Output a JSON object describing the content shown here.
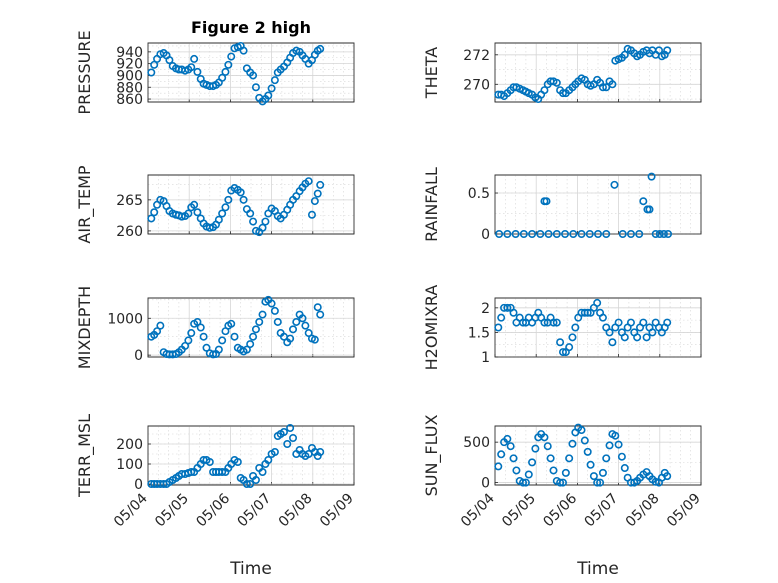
{
  "figure": {
    "title": "Figure 2 high",
    "marker_color": "#0072bd",
    "grid": "on",
    "minor_grid": "on"
  },
  "chart_data": [
    {
      "type": "scatter",
      "title": "Figure 2 high",
      "xlabel": "",
      "ylabel": "PRESSURE",
      "ylim": [
        855,
        955
      ],
      "yticks": [
        860,
        880,
        900,
        920,
        940
      ],
      "xlim": [
        "05/04",
        "05/09"
      ],
      "xticks": [
        "05/04",
        "05/05",
        "05/06",
        "05/07",
        "05/08",
        "05/09"
      ],
      "shape": "wave",
      "x": [
        0.08,
        0.15,
        0.22,
        0.3,
        0.38,
        0.45,
        0.52,
        0.6,
        0.68,
        0.75,
        0.82,
        0.9,
        0.98,
        1.05,
        1.12,
        1.2,
        1.28,
        1.35,
        1.42,
        1.5,
        1.58,
        1.65,
        1.72,
        1.8,
        1.88,
        1.95,
        2.02,
        2.1,
        2.18,
        2.25,
        2.32,
        2.4,
        2.48,
        2.55,
        2.62,
        2.7,
        2.78,
        2.85,
        2.92,
        3.0,
        3.08,
        3.15,
        3.22,
        3.3,
        3.38,
        3.45,
        3.52,
        3.6,
        3.68,
        3.75,
        3.82,
        3.9,
        3.98,
        4.05,
        4.12,
        4.18
      ],
      "y": [
        905,
        918,
        928,
        936,
        938,
        934,
        926,
        916,
        912,
        910,
        910,
        908,
        910,
        914,
        928,
        906,
        894,
        886,
        884,
        882,
        882,
        884,
        888,
        896,
        906,
        918,
        932,
        946,
        948,
        950,
        942,
        912,
        905,
        900,
        880,
        862,
        856,
        860,
        866,
        878,
        892,
        905,
        910,
        915,
        922,
        930,
        938,
        942,
        940,
        934,
        928,
        920,
        926,
        935,
        942,
        945
      ]
    },
    {
      "type": "scatter",
      "title": "",
      "xlabel": "",
      "ylabel": "THETA",
      "ylim": [
        268.8,
        272.8
      ],
      "yticks": [
        270,
        272
      ],
      "xlim": [
        "05/04",
        "05/09"
      ],
      "xticks": [
        "05/04",
        "05/05",
        "05/06",
        "05/07",
        "05/08",
        "05/09"
      ],
      "shape": "linear",
      "x": [
        0.08,
        0.15,
        0.22,
        0.3,
        0.38,
        0.45,
        0.52,
        0.6,
        0.68,
        0.75,
        0.82,
        0.9,
        0.98,
        1.05,
        1.12,
        1.2,
        1.28,
        1.35,
        1.42,
        1.5,
        1.58,
        1.65,
        1.72,
        1.8,
        1.88,
        1.95,
        2.02,
        2.1,
        2.18,
        2.25,
        2.32,
        2.4,
        2.48,
        2.55,
        2.62,
        2.7,
        2.78,
        2.85,
        2.92,
        3.0,
        3.08,
        3.15,
        3.22,
        3.3,
        3.38,
        3.45,
        3.52,
        3.6,
        3.68,
        3.75,
        3.82,
        3.9,
        3.98,
        4.05,
        4.12,
        4.18
      ],
      "y": [
        269.3,
        269.3,
        269.2,
        269.4,
        269.6,
        269.8,
        269.8,
        269.7,
        269.6,
        269.5,
        269.4,
        269.3,
        269.1,
        269.0,
        269.3,
        269.6,
        270.0,
        270.2,
        270.2,
        270.1,
        269.6,
        269.4,
        269.4,
        269.6,
        269.8,
        270.0,
        270.2,
        270.4,
        270.3,
        270.0,
        269.9,
        270.0,
        270.3,
        270.1,
        269.8,
        269.8,
        270.2,
        270.0,
        271.6,
        271.7,
        271.8,
        272.0,
        272.4,
        272.3,
        272.1,
        271.9,
        272.0,
        272.2,
        272.3,
        272.1,
        272.3,
        272.0,
        272.3,
        271.9,
        272.0,
        272.3
      ]
    },
    {
      "type": "scatter",
      "title": "",
      "xlabel": "",
      "ylabel": "AIR_TEMP",
      "ylim": [
        259.5,
        269.0
      ],
      "yticks": [
        260,
        265
      ],
      "xlim": [
        "05/04",
        "05/09"
      ],
      "xticks": [
        "05/04",
        "05/05",
        "05/06",
        "05/07",
        "05/08",
        "05/09"
      ],
      "shape": "wave",
      "x": [
        0.08,
        0.15,
        0.22,
        0.3,
        0.38,
        0.45,
        0.52,
        0.6,
        0.68,
        0.75,
        0.82,
        0.9,
        0.98,
        1.05,
        1.12,
        1.2,
        1.28,
        1.35,
        1.42,
        1.5,
        1.58,
        1.65,
        1.72,
        1.8,
        1.88,
        1.95,
        2.02,
        2.1,
        2.18,
        2.25,
        2.32,
        2.4,
        2.48,
        2.55,
        2.62,
        2.7,
        2.78,
        2.85,
        2.92,
        3.0,
        3.08,
        3.15,
        3.22,
        3.3,
        3.38,
        3.45,
        3.52,
        3.6,
        3.68,
        3.75,
        3.82,
        3.9,
        3.98,
        4.05,
        4.12,
        4.18
      ],
      "y": [
        262.0,
        263.0,
        264.2,
        265.0,
        264.8,
        264.0,
        263.2,
        262.8,
        262.6,
        262.5,
        262.3,
        262.4,
        262.8,
        263.8,
        264.2,
        263.0,
        262.0,
        261.2,
        260.7,
        260.5,
        260.6,
        261.0,
        261.8,
        262.8,
        263.8,
        265.0,
        266.5,
        266.9,
        266.6,
        266.2,
        265.0,
        263.5,
        262.8,
        261.5,
        260.0,
        259.8,
        260.5,
        261.5,
        262.8,
        263.6,
        263.2,
        262.4,
        262.0,
        262.6,
        263.4,
        264.2,
        265.0,
        265.6,
        266.4,
        267.0,
        267.6,
        268.0,
        262.6,
        264.8,
        266.0,
        267.4
      ]
    },
    {
      "type": "scatter",
      "title": "",
      "xlabel": "",
      "ylabel": "RAINFALL",
      "ylim": [
        0,
        0.72
      ],
      "yticks": [
        0,
        0.5
      ],
      "xlim": [
        "05/04",
        "05/09"
      ],
      "xticks": [
        "05/04",
        "05/05",
        "05/06",
        "05/07",
        "05/08",
        "05/09"
      ],
      "shape": "flat",
      "x": [
        0.1,
        0.3,
        0.5,
        0.7,
        0.9,
        1.1,
        1.2,
        1.25,
        1.3,
        1.5,
        1.7,
        1.9,
        2.1,
        2.3,
        2.5,
        2.7,
        2.9,
        3.1,
        3.3,
        3.5,
        3.6,
        3.7,
        3.75,
        3.8,
        3.9,
        4.0,
        4.1,
        4.2
      ],
      "y": [
        0,
        0,
        0,
        0,
        0,
        0,
        0.4,
        0.4,
        0,
        0,
        0,
        0,
        0,
        0,
        0,
        0,
        0.6,
        0,
        0,
        0,
        0.4,
        0.3,
        0.3,
        0.7,
        0,
        0,
        0,
        0
      ]
    },
    {
      "type": "scatter",
      "title": "",
      "xlabel": "",
      "ylabel": "MIXDEPTH",
      "ylim": [
        -50,
        1550
      ],
      "yticks": [
        0,
        1000
      ],
      "xlim": [
        "05/04",
        "05/09"
      ],
      "xticks": [
        "05/04",
        "05/05",
        "05/06",
        "05/07",
        "05/08",
        "05/09"
      ],
      "shape": "wave",
      "x": [
        0.08,
        0.15,
        0.22,
        0.3,
        0.38,
        0.45,
        0.52,
        0.6,
        0.68,
        0.75,
        0.82,
        0.9,
        0.98,
        1.05,
        1.12,
        1.2,
        1.28,
        1.35,
        1.42,
        1.5,
        1.58,
        1.65,
        1.72,
        1.8,
        1.88,
        1.95,
        2.02,
        2.1,
        2.18,
        2.25,
        2.32,
        2.4,
        2.48,
        2.55,
        2.62,
        2.7,
        2.78,
        2.85,
        2.92,
        3.0,
        3.08,
        3.15,
        3.22,
        3.3,
        3.38,
        3.45,
        3.52,
        3.6,
        3.68,
        3.75,
        3.82,
        3.9,
        3.98,
        4.05,
        4.12,
        4.18
      ],
      "y": [
        500,
        550,
        650,
        800,
        80,
        30,
        20,
        20,
        30,
        80,
        150,
        250,
        400,
        600,
        850,
        900,
        750,
        500,
        200,
        50,
        20,
        30,
        150,
        400,
        650,
        800,
        850,
        500,
        200,
        150,
        100,
        150,
        300,
        500,
        700,
        900,
        1100,
        1450,
        1500,
        1400,
        1200,
        900,
        600,
        500,
        350,
        450,
        700,
        900,
        1100,
        1000,
        800,
        600,
        450,
        420,
        1300,
        1100
      ]
    },
    {
      "type": "scatter",
      "title": "",
      "xlabel": "",
      "ylabel": "H2OMIXRA",
      "ylim": [
        1.0,
        2.2
      ],
      "yticks": [
        1,
        1.5,
        2
      ],
      "xlim": [
        "05/04",
        "05/09"
      ],
      "xticks": [
        "05/04",
        "05/05",
        "05/06",
        "05/07",
        "05/08",
        "05/09"
      ],
      "shape": "wave",
      "x": [
        0.08,
        0.15,
        0.22,
        0.3,
        0.38,
        0.45,
        0.52,
        0.6,
        0.68,
        0.75,
        0.82,
        0.9,
        0.98,
        1.05,
        1.12,
        1.2,
        1.28,
        1.35,
        1.42,
        1.5,
        1.58,
        1.65,
        1.72,
        1.8,
        1.88,
        1.95,
        2.02,
        2.1,
        2.18,
        2.25,
        2.32,
        2.4,
        2.48,
        2.55,
        2.62,
        2.7,
        2.78,
        2.85,
        2.92,
        3.0,
        3.08,
        3.15,
        3.22,
        3.3,
        3.38,
        3.45,
        3.52,
        3.6,
        3.68,
        3.75,
        3.82,
        3.9,
        3.98,
        4.05,
        4.12,
        4.18
      ],
      "y": [
        1.6,
        1.8,
        2.0,
        2.0,
        2.0,
        1.9,
        1.7,
        1.8,
        1.7,
        1.7,
        1.8,
        1.7,
        1.8,
        1.9,
        1.8,
        1.7,
        1.7,
        1.8,
        1.7,
        1.7,
        1.3,
        1.1,
        1.1,
        1.2,
        1.4,
        1.6,
        1.8,
        1.9,
        1.9,
        1.9,
        1.9,
        2.0,
        2.1,
        1.9,
        1.8,
        1.6,
        1.5,
        1.3,
        1.6,
        1.7,
        1.5,
        1.4,
        1.6,
        1.7,
        1.5,
        1.4,
        1.6,
        1.7,
        1.4,
        1.6,
        1.5,
        1.7,
        1.6,
        1.5,
        1.6,
        1.7
      ]
    },
    {
      "type": "scatter",
      "title": "",
      "xlabel": "Time",
      "ylabel": "TERR_MSL",
      "ylim": [
        -5,
        290
      ],
      "yticks": [
        0,
        100,
        200
      ],
      "xlim": [
        "05/04",
        "05/09"
      ],
      "xticks": [
        "05/04",
        "05/05",
        "05/06",
        "05/07",
        "05/08",
        "05/09"
      ],
      "shape": "step",
      "x": [
        0.08,
        0.15,
        0.22,
        0.3,
        0.38,
        0.45,
        0.52,
        0.6,
        0.68,
        0.75,
        0.82,
        0.9,
        0.98,
        1.05,
        1.12,
        1.2,
        1.28,
        1.35,
        1.42,
        1.5,
        1.58,
        1.65,
        1.72,
        1.8,
        1.88,
        1.95,
        2.02,
        2.1,
        2.18,
        2.25,
        2.32,
        2.4,
        2.48,
        2.55,
        2.62,
        2.7,
        2.78,
        2.85,
        2.92,
        3.0,
        3.08,
        3.15,
        3.22,
        3.3,
        3.38,
        3.45,
        3.52,
        3.6,
        3.68,
        3.75,
        3.82,
        3.9,
        3.98,
        4.05,
        4.12,
        4.18
      ],
      "y": [
        0,
        0,
        0,
        0,
        0,
        0,
        10,
        20,
        30,
        40,
        50,
        50,
        55,
        60,
        60,
        80,
        100,
        120,
        120,
        110,
        60,
        60,
        60,
        60,
        60,
        80,
        100,
        120,
        110,
        30,
        20,
        0,
        0,
        40,
        20,
        80,
        60,
        100,
        120,
        150,
        160,
        240,
        250,
        260,
        200,
        280,
        230,
        150,
        170,
        150,
        140,
        150,
        180,
        160,
        140,
        160
      ]
    },
    {
      "type": "scatter",
      "title": "",
      "xlabel": "Time",
      "ylabel": "SUN_FLUX",
      "ylim": [
        -30,
        700
      ],
      "yticks": [
        0,
        500
      ],
      "xlim": [
        "05/04",
        "05/09"
      ],
      "xticks": [
        "05/04",
        "05/05",
        "05/06",
        "05/07",
        "05/08",
        "05/09"
      ],
      "shape": "wave",
      "x": [
        0.08,
        0.15,
        0.22,
        0.3,
        0.38,
        0.45,
        0.52,
        0.6,
        0.68,
        0.75,
        0.82,
        0.9,
        0.98,
        1.05,
        1.12,
        1.2,
        1.28,
        1.35,
        1.42,
        1.5,
        1.58,
        1.65,
        1.72,
        1.8,
        1.88,
        1.95,
        2.02,
        2.1,
        2.18,
        2.25,
        2.32,
        2.4,
        2.48,
        2.55,
        2.62,
        2.7,
        2.78,
        2.85,
        2.92,
        3.0,
        3.08,
        3.15,
        3.22,
        3.3,
        3.38,
        3.45,
        3.52,
        3.6,
        3.68,
        3.75,
        3.82,
        3.9,
        3.98,
        4.05,
        4.12,
        4.18
      ],
      "y": [
        200,
        350,
        500,
        540,
        450,
        300,
        150,
        20,
        0,
        0,
        100,
        250,
        420,
        560,
        600,
        560,
        450,
        300,
        150,
        20,
        0,
        0,
        120,
        300,
        480,
        620,
        680,
        650,
        520,
        380,
        220,
        80,
        0,
        0,
        120,
        300,
        460,
        600,
        580,
        470,
        320,
        180,
        60,
        0,
        0,
        20,
        60,
        100,
        130,
        80,
        40,
        10,
        0,
        60,
        120,
        80
      ]
    }
  ]
}
